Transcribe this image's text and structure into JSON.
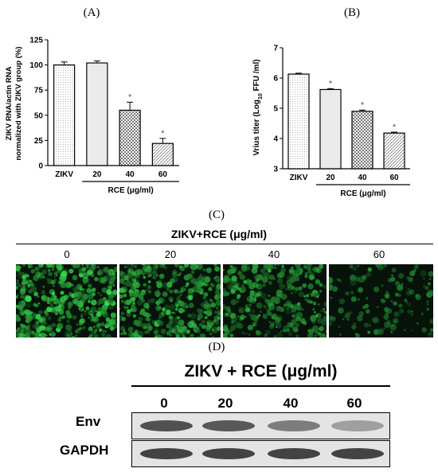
{
  "panel_a": {
    "label": "(A)",
    "x_group_label": "RCE (μg/ml)"
  },
  "panel_b": {
    "label": "(B)",
    "x_group_label": "RCE (μg/ml)"
  },
  "panel_c": {
    "label": "(C)",
    "header": "ZIKV+RCE (μg/ml)",
    "concentrations": [
      "0",
      "20",
      "40",
      "60"
    ],
    "green_intensity": [
      1.0,
      0.85,
      0.7,
      0.25
    ]
  },
  "panel_d": {
    "label": "(D)",
    "header": "ZIKV + RCE (μg/ml)",
    "concentrations": [
      "0",
      "20",
      "40",
      "60"
    ],
    "rows": [
      "Env",
      "GAPDH"
    ],
    "env_intensity": [
      0.85,
      0.8,
      0.55,
      0.3
    ],
    "gapdh_intensity": [
      0.95,
      0.95,
      0.95,
      0.95
    ]
  },
  "chart_data": [
    {
      "type": "bar",
      "ylabel": "ZIKV RNA/actin RNA normalized with ZIKV group (%)",
      "ylabel_line1": "ZIKV RNA/actin RNA",
      "ylabel_line2": "normalized with ZIKV group (%)",
      "categories": [
        "ZIKV",
        "20",
        "40",
        "60"
      ],
      "values": [
        100,
        102,
        55,
        22
      ],
      "errors": [
        3,
        2,
        8,
        5
      ],
      "significance": [
        "",
        "",
        "*",
        "*"
      ],
      "ylim": [
        0,
        125
      ],
      "yticks": [
        0,
        25,
        50,
        75,
        100,
        125
      ],
      "xgroup_label": "RCE (μg/ml)"
    },
    {
      "type": "bar",
      "ylabel": "Virus titer (Log10 FFU /ml)",
      "ylabel_pre": "Vrius titer (Log",
      "ylabel_sub": "10",
      "ylabel_post": " FFU /ml)",
      "categories": [
        "ZIKV",
        "20",
        "40",
        "60"
      ],
      "values": [
        6.13,
        5.62,
        4.9,
        4.18
      ],
      "errors": [
        0.03,
        0.03,
        0.04,
        0.03
      ],
      "significance": [
        "",
        "*",
        "*",
        "*"
      ],
      "ylim": [
        3,
        7
      ],
      "yticks": [
        3,
        4,
        5,
        6,
        7
      ],
      "xgroup_label": "RCE (μg/ml)"
    }
  ]
}
